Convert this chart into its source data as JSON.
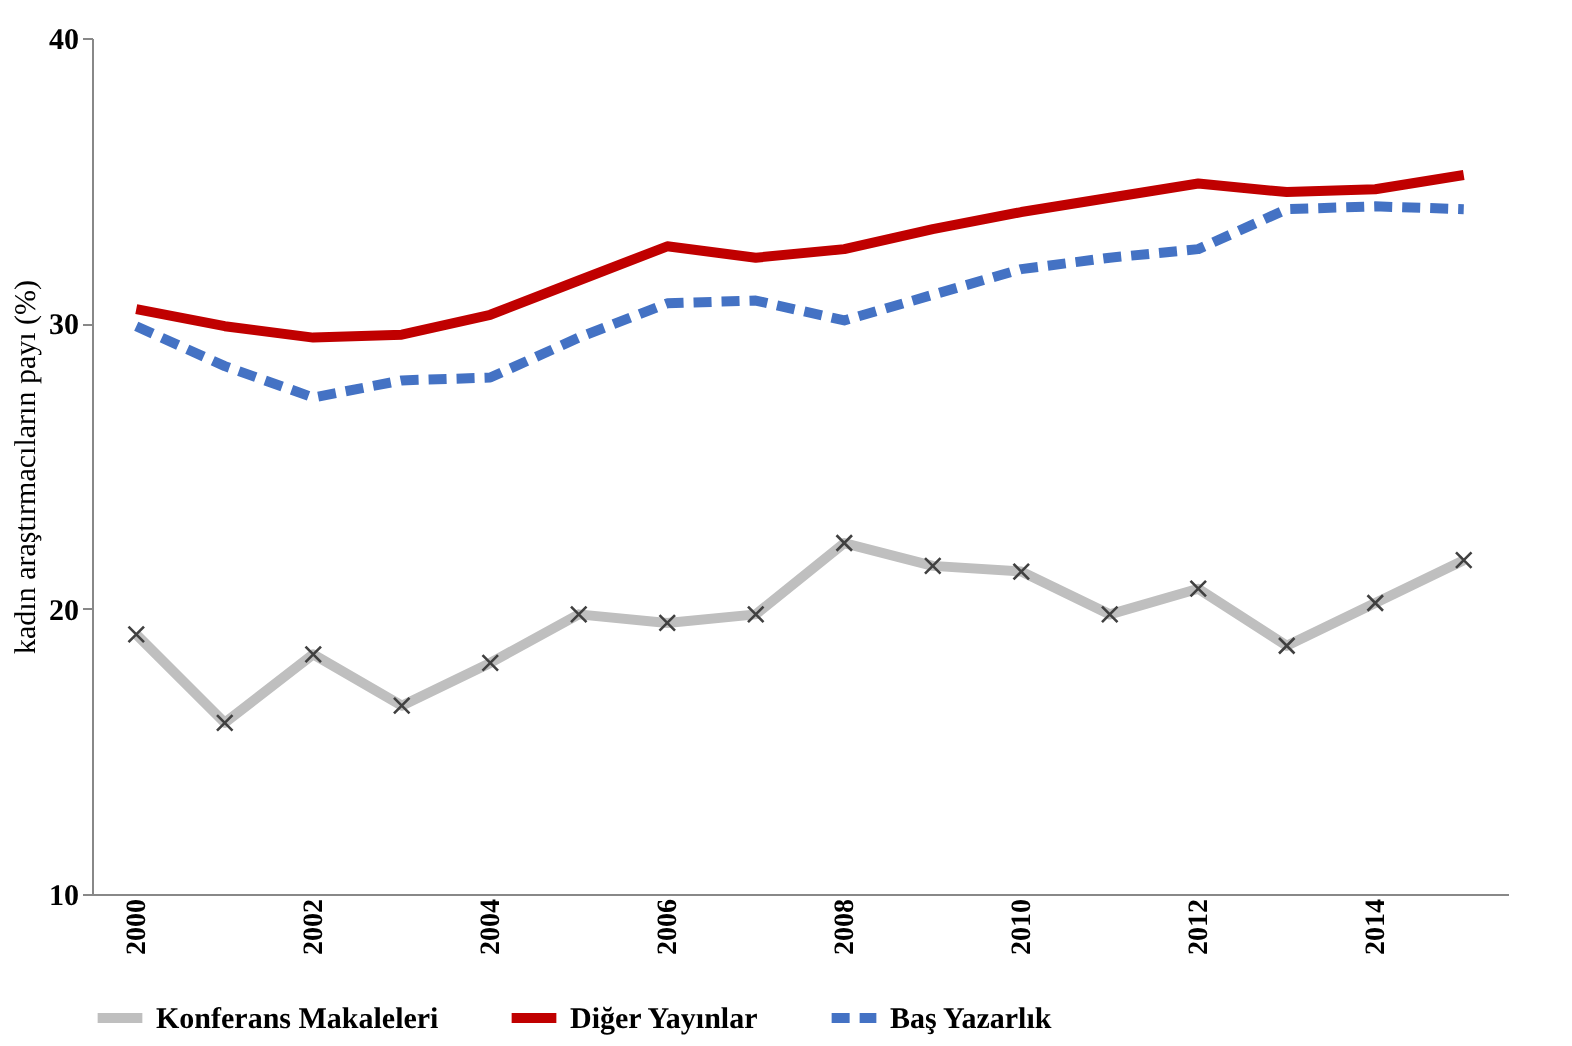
{
  "chart_data": {
    "type": "line",
    "ylabel": "kadın araştırmacıların payı (%)",
    "categories": [
      "2000",
      null,
      "2002",
      null,
      "2004",
      null,
      "2006",
      null,
      "2008",
      null,
      "2010",
      null,
      "2012",
      null,
      "2014",
      null
    ],
    "series": [
      {
        "name": "Konferans Makaleleri",
        "color": "#bfbfbf",
        "marker": "cross",
        "line_style": "solid",
        "values": [
          19.1,
          16.0,
          18.4,
          16.6,
          18.1,
          19.8,
          19.5,
          19.8,
          22.3,
          21.5,
          21.3,
          19.8,
          20.7,
          18.7,
          20.2,
          21.7
        ]
      },
      {
        "name": "Diğer Yayınlar",
        "color": "#c00000",
        "line_style": "solid",
        "values": [
          30.5,
          29.9,
          29.5,
          29.6,
          30.3,
          31.5,
          32.7,
          32.3,
          32.6,
          33.3,
          33.9,
          34.4,
          34.9,
          34.6,
          34.7,
          35.2
        ]
      },
      {
        "name": "Baş Yazarlık",
        "color": "#4472c4",
        "line_style": "dashed",
        "values": [
          29.9,
          28.5,
          27.4,
          28.0,
          28.1,
          29.5,
          30.7,
          30.8,
          30.1,
          31.0,
          31.9,
          32.3,
          32.6,
          34.0,
          34.1,
          34.0
        ]
      }
    ],
    "ylim": [
      10,
      40
    ],
    "yticks": [
      10,
      20,
      30,
      40
    ],
    "grid": false,
    "legend": "bottom"
  }
}
